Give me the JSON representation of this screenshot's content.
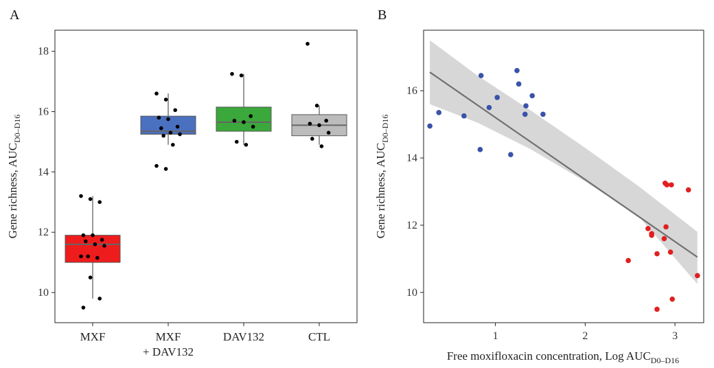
{
  "chart_data": [
    {
      "type": "box",
      "panel_label": "A",
      "ylabel": "Gene richness, AUC",
      "ylabel_subscript": "D0–D16",
      "xlabel": "",
      "ylim": [
        9.0,
        18.7
      ],
      "yticks": [
        10,
        12,
        14,
        16,
        18
      ],
      "grid": false,
      "categories": [
        {
          "label": "MXF",
          "label_line2": "",
          "color": "#ee1c1c"
        },
        {
          "label": "MXF",
          "label_line2": "+ DAV132",
          "color": "#4a70c0"
        },
        {
          "label": "DAV132",
          "label_line2": "",
          "color": "#3aa83a"
        },
        {
          "label": "CTL",
          "label_line2": "",
          "color": "#bcbcbc"
        }
      ],
      "boxes": [
        {
          "min": 9.8,
          "q1": 11.0,
          "median": 11.6,
          "q3": 11.9,
          "max": 13.2
        },
        {
          "min": 14.9,
          "q1": 15.25,
          "median": 15.35,
          "q3": 15.85,
          "max": 16.6
        },
        {
          "min": 14.9,
          "q1": 15.35,
          "median": 15.65,
          "q3": 16.15,
          "max": 17.25
        },
        {
          "min": 14.9,
          "q1": 15.2,
          "median": 15.55,
          "q3": 15.9,
          "max": 16.2
        }
      ],
      "points": [
        [
          13.2,
          13.1,
          13.0,
          11.9,
          11.9,
          11.75,
          11.7,
          11.6,
          11.55,
          11.2,
          11.15,
          11.2,
          10.5,
          9.8,
          9.5
        ],
        [
          16.6,
          16.4,
          16.05,
          15.8,
          15.75,
          15.5,
          15.45,
          15.3,
          15.25,
          15.2,
          14.9,
          14.2,
          14.1
        ],
        [
          17.25,
          17.2,
          15.85,
          15.7,
          15.65,
          15.5,
          15.0,
          14.9
        ],
        [
          18.25,
          16.2,
          15.7,
          15.6,
          15.55,
          15.3,
          15.1,
          14.85
        ]
      ]
    },
    {
      "type": "scatter",
      "panel_label": "B",
      "xlabel": "Free moxifloxacin concentration, Log AUC",
      "xlabel_subscript": "D0–D16",
      "ylabel": "Gene richness, AUC",
      "ylabel_subscript": "D0–D16",
      "xlim": [
        0.2,
        3.32
      ],
      "ylim": [
        9.1,
        17.8
      ],
      "xticks": [
        1,
        2,
        3
      ],
      "yticks": [
        10,
        12,
        14,
        16
      ],
      "grid": false,
      "series": [
        {
          "color": "#3a52a8",
          "x": [
            0.27,
            0.37,
            0.65,
            0.83,
            0.84,
            0.93,
            1.02,
            1.17,
            1.24,
            1.26,
            1.33,
            1.34,
            1.41,
            1.53
          ],
          "y": [
            14.95,
            15.35,
            15.25,
            14.25,
            16.45,
            15.5,
            15.8,
            14.1,
            16.6,
            16.2,
            15.3,
            15.55,
            15.85,
            15.3
          ]
        },
        {
          "color": "#e02020",
          "x": [
            2.48,
            2.7,
            2.74,
            2.74,
            2.8,
            2.8,
            2.88,
            2.89,
            2.9,
            2.91,
            2.95,
            2.96,
            2.97,
            3.15,
            3.25
          ],
          "y": [
            10.95,
            11.9,
            11.75,
            11.7,
            11.15,
            9.5,
            11.6,
            13.25,
            11.95,
            13.2,
            11.2,
            13.2,
            9.8,
            13.05,
            10.5
          ]
        }
      ],
      "regression": {
        "x0": 0.27,
        "y0": 16.55,
        "x1": 3.25,
        "y1": 11.05,
        "color": "#707070"
      },
      "confidence_band": {
        "x": [
          0.27,
          0.8,
          1.4,
          2.0,
          2.6,
          3.25
        ],
        "upper": [
          17.5,
          16.45,
          15.4,
          14.3,
          13.15,
          11.8
        ],
        "lower": [
          15.6,
          15.05,
          14.25,
          13.3,
          12.25,
          10.25
        ],
        "color": "#d0d0d0"
      }
    }
  ]
}
